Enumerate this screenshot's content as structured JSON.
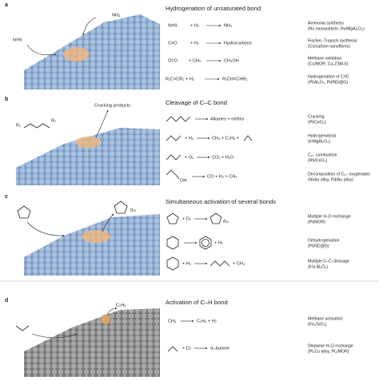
{
  "panels": [
    {
      "label": "a",
      "title": "Hydrogenation of unsaturated bond",
      "annotations": [
        "NH₃",
        "N≡N"
      ],
      "reactions": [
        {
          "left": "N≡N",
          "mid": "+ H₂",
          "right": "NH₃",
          "application": "Ammonia synthesis",
          "catalyst": "(Ru nanoparticle, Ru/MgAl₂O₄)"
        },
        {
          "left": "C≡O",
          "mid": "+ H₂",
          "right": "Hydrocarbons",
          "application": "Fischer–Tropsch synthesis",
          "catalyst": "(Co/carbon nanofibres)"
        },
        {
          "left": "O=O",
          "mid": "+ CH₄",
          "right": "CH₃OH",
          "application": "Methane oxidation",
          "catalyst": "(Cu/MOR, Cu-ZSM-5)"
        },
        {
          "left": "R₁C≡CR₂ + H₂",
          "right": "R₁CH=CHR₂",
          "application": "Hydrogenation of C≡C",
          "catalyst": "(Pt/Al₂O₃, Pd/ND@G)"
        }
      ]
    },
    {
      "label": "b",
      "title": "Cleavage of C–C bond",
      "annotations": [
        "Cracking products",
        "R₁",
        "R₂"
      ],
      "reactions": [
        {
          "right": "Alkanes + olefins",
          "application": "Cracking",
          "catalyst": "(Pt/CeO₂)"
        },
        {
          "mid": "+ H₂",
          "right": "CH₄ + C₂H₆ +",
          "application": "Hydrogenolysis",
          "catalyst": "(Ir/MgAl₂O₄)"
        },
        {
          "mid": "+ O₂",
          "right": "CO₂ + H₂O",
          "application": "C₂₊ combustion",
          "catalyst": "(Rh/CeO₂)"
        },
        {
          "left": "OH",
          "right": "CO + H₂ + CH₄",
          "application": "Decomposition of C₂₊ oxygenates",
          "catalyst": "(Ni/Au alloy, Pd/Au alloy)"
        }
      ]
    },
    {
      "label": "c",
      "title": "Simultaneous activation of several bonds",
      "annotations": [
        "d₁₀"
      ],
      "reactions": [
        {
          "mid": "+ D₂",
          "right": "d₁₀",
          "application": "Multiple H–D exchange",
          "catalyst": "(Pt/MOR)"
        },
        {
          "right": "+ H₂",
          "application": "Dehydrogenation",
          "catalyst": "(Pt/ND@G)"
        },
        {
          "mid": "+ H₂",
          "right": "+ CH₄",
          "application": "Multiple C–C cleavage",
          "catalyst": "(Ir/γ-Al₂O₃)"
        }
      ]
    },
    {
      "label": "d",
      "title": "Activation of C–H bond",
      "annotations": [
        "C₂H₆"
      ],
      "reactions": [
        {
          "left": "CH₄",
          "right": "C₂H₆ + H₂",
          "application": "Methane activation",
          "catalyst": "(Fe₁/SiO₂)"
        },
        {
          "mid": "+ D₂",
          "right": "d₁-butane",
          "application": "Stepwise H–D exchange",
          "catalyst": "(Pt₁Cu alloy, Pt₁/MOR)"
        }
      ]
    }
  ]
}
